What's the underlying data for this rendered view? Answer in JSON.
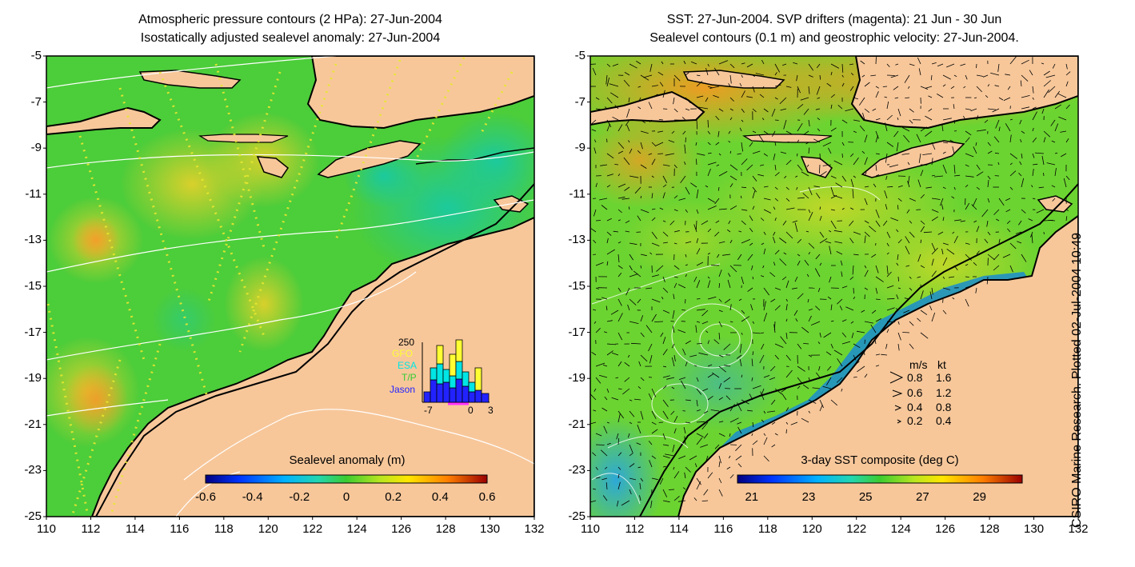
{
  "left_panel": {
    "title_line1": "Atmospheric pressure contours (2 HPa): 27-Jun-2004",
    "title_line2": "Isostatically adjusted sealevel anomaly: 27-Jun-2004",
    "colorbar": {
      "label": "Sealevel anomaly (m)",
      "ticks": [
        "-0.6",
        "-0.4",
        "-0.2",
        "0",
        "0.2",
        "0.4",
        "0.6"
      ],
      "range": [
        -0.6,
        0.6
      ]
    },
    "histogram": {
      "ymax_label": "250",
      "legend": [
        {
          "name": "GFO",
          "color": "#ffff33"
        },
        {
          "name": "ESA",
          "color": "#00e5e5"
        },
        {
          "name": "T/P",
          "color": "#33cc33"
        },
        {
          "name": "Jason",
          "color": "#2222ff"
        }
      ],
      "x_ticks": [
        "-7",
        "0",
        "3"
      ]
    }
  },
  "right_panel": {
    "title_line1": "SST: 27-Jun-2004. SVP drifters (magenta): 21 Jun - 30 Jun",
    "title_line2": "Sealevel contours (0.1 m) and geostrophic velocity: 27-Jun-2004.",
    "colorbar": {
      "label": "3-day SST composite (deg C)",
      "ticks": [
        "21",
        "23",
        "25",
        "27",
        "29"
      ],
      "range": [
        20.5,
        30.5
      ]
    },
    "velocity_legend": {
      "header_ms": "m/s",
      "header_kt": "kt",
      "rows": [
        {
          "ms": "0.8",
          "kt": "1.6"
        },
        {
          "ms": "0.6",
          "kt": "1.2"
        },
        {
          "ms": "0.4",
          "kt": "0.8"
        },
        {
          "ms": "0.2",
          "kt": "0.4"
        }
      ]
    }
  },
  "axes": {
    "y_ticks": [
      "-5",
      "-7",
      "-9",
      "-11",
      "-13",
      "-15",
      "-17",
      "-19",
      "-21",
      "-23",
      "-25"
    ],
    "x_ticks": [
      "110",
      "112",
      "114",
      "116",
      "118",
      "120",
      "122",
      "124",
      "126",
      "128",
      "130",
      "132"
    ],
    "lat_range": [
      -25,
      -5
    ],
    "lon_range": [
      110,
      132
    ]
  },
  "credit": "CSIRO Marine Research. Plotted 02-Jul-2004 10:49",
  "colors": {
    "land": "#f7c79a",
    "ocean_left": "#4ccd3a",
    "ocean_right": "#6cd431",
    "warm_sst": "#f3a823",
    "cool_sst": "#29a3e0"
  }
}
